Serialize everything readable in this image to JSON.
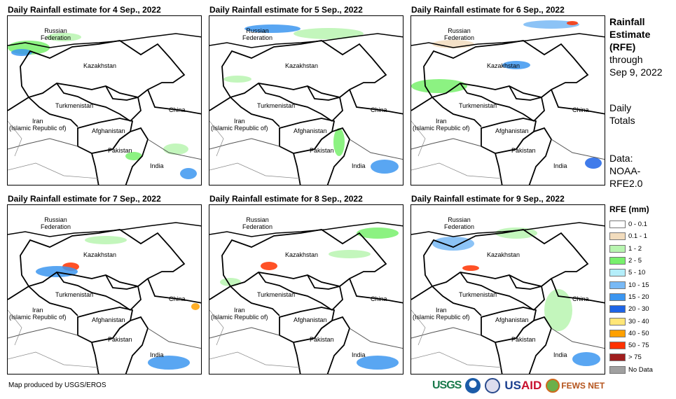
{
  "panels": [
    {
      "title": "Daily Rainfall estimate for 4 Sep., 2022"
    },
    {
      "title": "Daily Rainfall estimate for 5 Sep., 2022"
    },
    {
      "title": "Daily Rainfall estimate for 6 Sep., 2022"
    },
    {
      "title": "Daily Rainfall estimate for 7 Sep., 2022"
    },
    {
      "title": "Daily Rainfall estimate for 8 Sep., 2022"
    },
    {
      "title": "Daily Rainfall estimate for 9 Sep., 2022"
    }
  ],
  "map_labels": {
    "russia": "Russian\nFederation",
    "kazakhstan": "Kazakhstan",
    "turkmenistan": "Turkmenistan",
    "china": "China",
    "iran": "Iran\n(Islamic Republic of)",
    "afghanistan": "Afghanistan",
    "pakistan": "Pakistan",
    "india": "India"
  },
  "side": {
    "title1": "Rainfall",
    "title2": "Estimate",
    "title3": "(RFE)",
    "through": "through",
    "date": "Sep 9, 2022",
    "daily": "Daily",
    "totals": "Totals",
    "data_label": "Data:",
    "data1": "NOAA-",
    "data2": "RFE2.0"
  },
  "legend": {
    "title": "RFE (mm)",
    "items": [
      {
        "label": "0 - 0.1",
        "color": "#ffffff"
      },
      {
        "label": "0.1 - 1",
        "color": "#f2dcbd"
      },
      {
        "label": "1 - 2",
        "color": "#b8f5b0"
      },
      {
        "label": "2 - 5",
        "color": "#78f06c"
      },
      {
        "label": "5 - 10",
        "color": "#b4eefa"
      },
      {
        "label": "10 - 15",
        "color": "#78b9f5"
      },
      {
        "label": "15 - 20",
        "color": "#3c96f0"
      },
      {
        "label": "20 - 30",
        "color": "#1e64e6"
      },
      {
        "label": "30 - 40",
        "color": "#ffe678"
      },
      {
        "label": "40 - 50",
        "color": "#ffa000"
      },
      {
        "label": "50 - 75",
        "color": "#ff3200"
      },
      {
        "label": "> 75",
        "color": "#a01e1e"
      },
      {
        "label": "No Data",
        "color": "#a0a0a0"
      }
    ]
  },
  "credit": "Map produced by USGS/EROS",
  "logos": {
    "usgs": "USGS",
    "usaid_a": "US",
    "usaid_b": "AID",
    "fews": "FEWS NET"
  }
}
